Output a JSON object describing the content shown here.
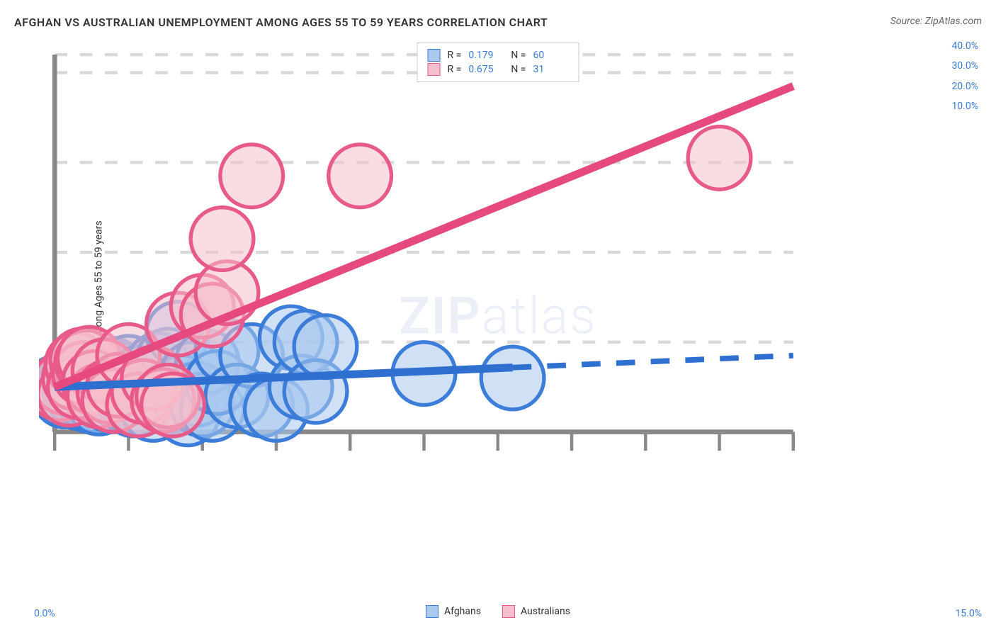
{
  "title": "AFGHAN VS AUSTRALIAN UNEMPLOYMENT AMONG AGES 55 TO 59 YEARS CORRELATION CHART",
  "source": "Source: ZipAtlas.com",
  "y_axis_label": "Unemployment Among Ages 55 to 59 years",
  "watermark": {
    "part1": "ZIP",
    "part2": "atlas"
  },
  "chart": {
    "type": "scatter",
    "background_color": "#ffffff",
    "grid_color": "#d8d8d8",
    "grid_dash": "4,4",
    "xlim": [
      0,
      15
    ],
    "ylim": [
      0,
      42
    ],
    "x_ticks": [
      0,
      1.5,
      3,
      4.5,
      6,
      7.5,
      9,
      10.5,
      12,
      13.5,
      15
    ],
    "x_tick_labels": {
      "0": "0.0%",
      "15": "15.0%"
    },
    "y_gridlines": [
      10,
      20,
      30,
      40
    ],
    "y_tick_labels": {
      "10": "10.0%",
      "20": "20.0%",
      "30": "30.0%",
      "40": "40.0%"
    },
    "marker_radius": 10,
    "marker_opacity": 0.55,
    "series": [
      {
        "name": "Afghans",
        "color_fill": "#a9c9ef",
        "color_stroke": "#3b7dd8",
        "R": "0.179",
        "N": "60",
        "trend": {
          "color": "#2f6fd0",
          "width": 2.5,
          "y_at_xmin": 5.0,
          "y_at_xmax": 8.5,
          "solid_until_x": 9.3
        },
        "points": [
          [
            0.05,
            5.0
          ],
          [
            0.1,
            4.5
          ],
          [
            0.15,
            5.2
          ],
          [
            0.2,
            4.0
          ],
          [
            0.25,
            5.5
          ],
          [
            0.3,
            4.3
          ],
          [
            0.35,
            6.0
          ],
          [
            0.4,
            4.8
          ],
          [
            0.45,
            5.3
          ],
          [
            0.5,
            3.8
          ],
          [
            0.55,
            6.5
          ],
          [
            0.6,
            4.2
          ],
          [
            0.65,
            5.7
          ],
          [
            0.7,
            3.5
          ],
          [
            0.75,
            6.2
          ],
          [
            0.8,
            4.6
          ],
          [
            0.85,
            5.9
          ],
          [
            0.9,
            3.2
          ],
          [
            0.95,
            6.8
          ],
          [
            1.0,
            4.9
          ],
          [
            1.05,
            5.4
          ],
          [
            1.1,
            3.6
          ],
          [
            1.15,
            7.0
          ],
          [
            1.2,
            4.4
          ],
          [
            1.25,
            5.8
          ],
          [
            1.3,
            3.9
          ],
          [
            1.35,
            6.4
          ],
          [
            1.4,
            4.1
          ],
          [
            1.45,
            5.1
          ],
          [
            1.5,
            7.2
          ],
          [
            1.6,
            3.0
          ],
          [
            1.7,
            6.0
          ],
          [
            1.8,
            4.5
          ],
          [
            1.9,
            5.6
          ],
          [
            2.0,
            2.5
          ],
          [
            2.1,
            7.5
          ],
          [
            2.2,
            4.0
          ],
          [
            2.3,
            8.0
          ],
          [
            2.4,
            3.5
          ],
          [
            2.5,
            11.0
          ],
          [
            2.6,
            5.0
          ],
          [
            2.7,
            2.0
          ],
          [
            2.8,
            6.5
          ],
          [
            2.9,
            4.2
          ],
          [
            3.0,
            3.0
          ],
          [
            3.1,
            7.8
          ],
          [
            3.2,
            2.5
          ],
          [
            3.3,
            5.5
          ],
          [
            3.5,
            9.0
          ],
          [
            3.7,
            4.0
          ],
          [
            4.0,
            8.5
          ],
          [
            4.2,
            3.0
          ],
          [
            4.5,
            2.5
          ],
          [
            4.8,
            10.5
          ],
          [
            5.0,
            5.0
          ],
          [
            5.1,
            10.0
          ],
          [
            5.3,
            4.5
          ],
          [
            5.5,
            9.5
          ],
          [
            7.5,
            6.5
          ],
          [
            9.3,
            6.0
          ]
        ]
      },
      {
        "name": "Australians",
        "color_fill": "#f5c0cc",
        "color_stroke": "#e85a8a",
        "R": "0.675",
        "N": "31",
        "trend": {
          "color": "#e64980",
          "width": 2.5,
          "y_at_xmin": 5.0,
          "y_at_xmax": 38.5,
          "solid_until_x": 15
        },
        "points": [
          [
            0.1,
            4.8
          ],
          [
            0.2,
            5.5
          ],
          [
            0.3,
            4.2
          ],
          [
            0.4,
            6.0
          ],
          [
            0.45,
            7.5
          ],
          [
            0.5,
            5.0
          ],
          [
            0.55,
            8.0
          ],
          [
            0.6,
            6.5
          ],
          [
            0.65,
            7.8
          ],
          [
            0.7,
            8.2
          ],
          [
            0.8,
            5.5
          ],
          [
            0.9,
            4.0
          ],
          [
            1.0,
            6.8
          ],
          [
            1.1,
            4.5
          ],
          [
            1.2,
            3.5
          ],
          [
            1.3,
            5.2
          ],
          [
            1.5,
            8.5
          ],
          [
            1.7,
            3.0
          ],
          [
            1.8,
            4.5
          ],
          [
            2.0,
            6.0
          ],
          [
            2.2,
            3.5
          ],
          [
            2.3,
            4.0
          ],
          [
            2.5,
            12.0
          ],
          [
            2.4,
            3.0
          ],
          [
            3.0,
            14.0
          ],
          [
            3.2,
            13.0
          ],
          [
            3.5,
            15.5
          ],
          [
            3.4,
            21.5
          ],
          [
            4.0,
            28.5
          ],
          [
            6.2,
            28.5
          ],
          [
            13.5,
            30.5
          ]
        ]
      }
    ]
  },
  "legend_bottom": [
    {
      "label": "Afghans",
      "fill": "#a9c9ef",
      "stroke": "#3b7dd8"
    },
    {
      "label": "Australians",
      "fill": "#f5c0cc",
      "stroke": "#e85a8a"
    }
  ]
}
